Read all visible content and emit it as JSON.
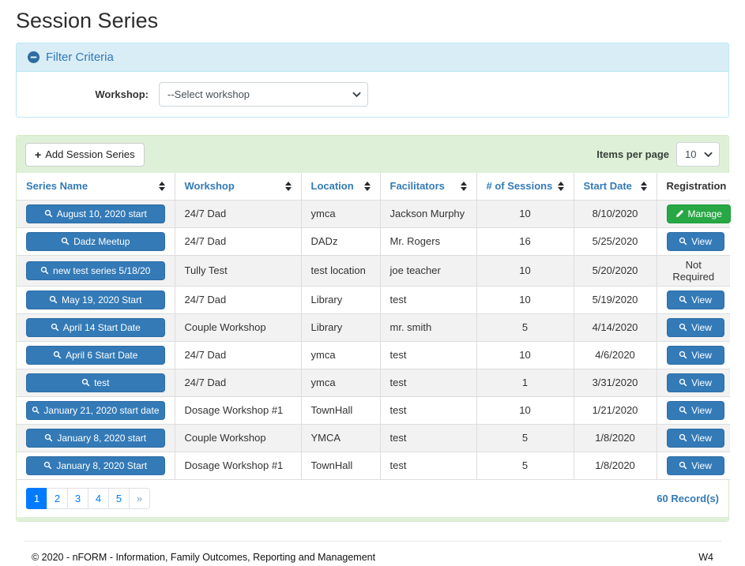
{
  "page": {
    "title": "Session Series"
  },
  "filter": {
    "title": "Filter Criteria",
    "workshop_label": "Workshop:",
    "workshop_value": "--Select workshop"
  },
  "toolbar": {
    "add_button_label": "Add Session Series",
    "items_per_page_label": "Items per page",
    "items_per_page_value": "10"
  },
  "icons": {
    "plus": "+"
  },
  "table": {
    "columns": [
      {
        "label": "Series Name",
        "sortable": true
      },
      {
        "label": "Workshop",
        "sortable": true
      },
      {
        "label": "Location",
        "sortable": true
      },
      {
        "label": "Facilitators",
        "sortable": true
      },
      {
        "label": "# of Sessions",
        "sortable": true
      },
      {
        "label": "Start Date",
        "sortable": true
      },
      {
        "label": "Registration",
        "sortable": false
      }
    ],
    "rows": [
      {
        "series_name": "August 10, 2020 start",
        "workshop": "24/7 Dad",
        "location": "ymca",
        "facilitators": "Jackson Murphy",
        "sessions": "10",
        "start_date": "8/10/2020",
        "registration": {
          "type": "manage",
          "label": "Manage"
        }
      },
      {
        "series_name": "Dadz Meetup",
        "workshop": "24/7 Dad",
        "location": "DADz",
        "facilitators": "Mr. Rogers",
        "sessions": "16",
        "start_date": "5/25/2020",
        "registration": {
          "type": "view",
          "label": "View"
        }
      },
      {
        "series_name": "new test series 5/18/20",
        "workshop": "Tully Test",
        "location": "test location",
        "facilitators": "joe teacher",
        "sessions": "10",
        "start_date": "5/20/2020",
        "registration": {
          "type": "text",
          "label": "Not Required"
        }
      },
      {
        "series_name": "May 19, 2020 Start",
        "workshop": "24/7 Dad",
        "location": "Library",
        "facilitators": "test",
        "sessions": "10",
        "start_date": "5/19/2020",
        "registration": {
          "type": "view",
          "label": "View"
        }
      },
      {
        "series_name": "April 14 Start Date",
        "workshop": "Couple Workshop",
        "location": "Library",
        "facilitators": "mr. smith",
        "sessions": "5",
        "start_date": "4/14/2020",
        "registration": {
          "type": "view",
          "label": "View"
        }
      },
      {
        "series_name": "April 6 Start Date",
        "workshop": "24/7 Dad",
        "location": "ymca",
        "facilitators": "test",
        "sessions": "10",
        "start_date": "4/6/2020",
        "registration": {
          "type": "view",
          "label": "View"
        }
      },
      {
        "series_name": "test",
        "workshop": "24/7 Dad",
        "location": "ymca",
        "facilitators": "test",
        "sessions": "1",
        "start_date": "3/31/2020",
        "registration": {
          "type": "view",
          "label": "View"
        }
      },
      {
        "series_name": "January 21, 2020 start date",
        "workshop": "Dosage Workshop #1",
        "location": "TownHall",
        "facilitators": "test",
        "sessions": "10",
        "start_date": "1/21/2020",
        "registration": {
          "type": "view",
          "label": "View"
        }
      },
      {
        "series_name": "January 8, 2020 start",
        "workshop": "Couple Workshop",
        "location": "YMCA",
        "facilitators": "test",
        "sessions": "5",
        "start_date": "1/8/2020",
        "registration": {
          "type": "view",
          "label": "View"
        }
      },
      {
        "series_name": "January 8, 2020 Start",
        "workshop": "Dosage Workshop #1",
        "location": "TownHall",
        "facilitators": "test",
        "sessions": "5",
        "start_date": "1/8/2020",
        "registration": {
          "type": "view",
          "label": "View"
        }
      }
    ]
  },
  "pagination": {
    "pages": [
      "1",
      "2",
      "3",
      "4",
      "5",
      "»"
    ],
    "active": "1"
  },
  "records_summary": "60 Record(s)",
  "footer": {
    "copyright": "© 2020 - nFORM - Information, Family Outcomes, Reporting and Management",
    "environment": "W4"
  }
}
